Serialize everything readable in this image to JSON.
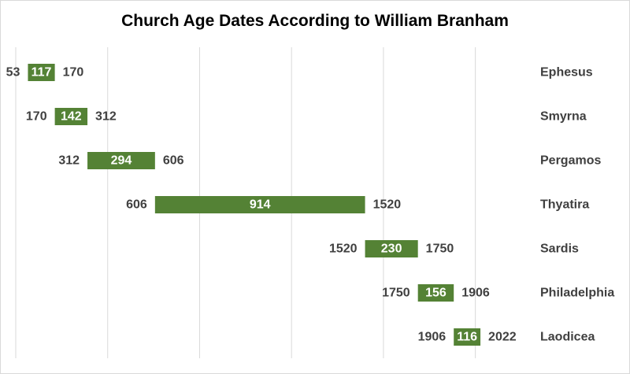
{
  "chart_data": {
    "type": "bar",
    "title": "Church Age Dates According to William Branham",
    "xlim": [
      0,
      2200
    ],
    "gridlines": [
      0,
      400,
      800,
      1200,
      1600,
      2000
    ],
    "grid": true,
    "bar_color": "#548235",
    "categories": [
      "Ephesus",
      "Smyrna",
      "Pergamos",
      "Thyatira",
      "Sardis",
      "Philadelphia",
      "Laodicea"
    ],
    "start": [
      53,
      170,
      312,
      606,
      1520,
      1750,
      1906
    ],
    "end": [
      170,
      312,
      606,
      1520,
      1750,
      1906,
      2022
    ],
    "duration": [
      117,
      142,
      294,
      914,
      230,
      156,
      116
    ]
  }
}
